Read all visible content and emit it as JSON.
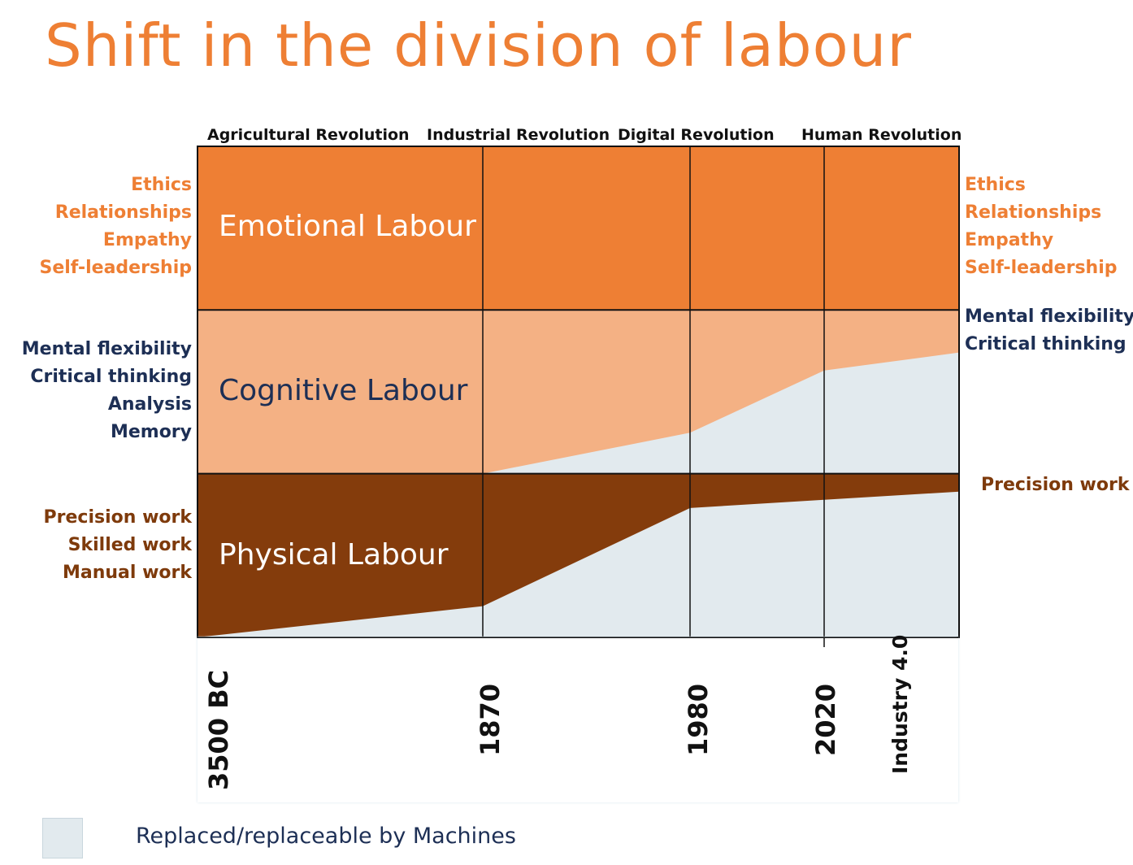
{
  "title": "Shift in the division of labour",
  "revolutions": [
    "Agricultural Revolution",
    "Industrial Revolution",
    "Digital Revolution",
    "Human Revolution"
  ],
  "bands": [
    {
      "name": "Emotional Labour",
      "color": "#ee7f34",
      "label_color": "#ffffff"
    },
    {
      "name": "Cognitive Labour",
      "color": "#f4b184",
      "label_color": "#1d2f55"
    },
    {
      "name": "Physical Labour",
      "color": "#843c0c",
      "label_color": "#ffffff"
    }
  ],
  "left_labels": {
    "emotional": [
      "Ethics",
      "Relationships",
      "Empathy",
      "Self-leadership"
    ],
    "cognitive": [
      "Mental flexibility",
      "Critical thinking",
      "Analysis",
      "Memory"
    ],
    "physical": [
      "Precision work",
      "Skilled work",
      "Manual work"
    ]
  },
  "right_labels": {
    "emotional": [
      "Ethics",
      "Relationships",
      "Empathy",
      "Self-leadership"
    ],
    "cognitive": [
      "Mental flexibility",
      "Critical thinking"
    ],
    "physical": [
      "Precision work"
    ]
  },
  "x_ticks": [
    "3500 BC",
    "1870",
    "1980",
    "2020",
    "Industry 4.0"
  ],
  "chart_data": {
    "type": "area",
    "categories": [
      "3500 BC",
      "1870",
      "1980",
      "2020",
      "Industry 4.0"
    ],
    "series": [
      {
        "name": "Emotional Labour",
        "replaced_fraction": [
          0,
          0,
          0,
          0,
          0
        ]
      },
      {
        "name": "Cognitive Labour",
        "replaced_fraction": [
          0,
          0,
          0.25,
          0.63,
          0.74
        ]
      },
      {
        "name": "Physical Labour",
        "replaced_fraction": [
          0,
          0.19,
          0.79,
          0.84,
          0.89
        ]
      }
    ],
    "machine_color": "#e2eaee"
  },
  "legend": {
    "label": "Replaced/replaceable by Machines",
    "color": "#e2eaee"
  }
}
